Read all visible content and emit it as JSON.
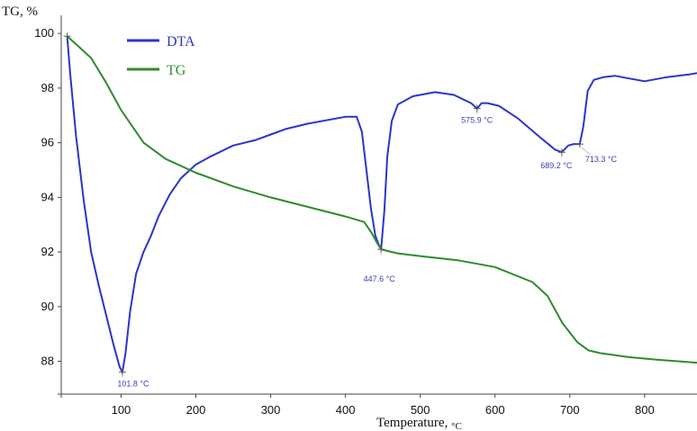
{
  "chart_data": {
    "type": "line",
    "ylabel": "TG, %",
    "xlabel": "Temperature,",
    "xlabel_unit": "°C",
    "xlim": [
      20,
      870
    ],
    "ylim": [
      86.8,
      100.4
    ],
    "grid": false,
    "legend_position": "top-left",
    "x_ticks": [
      100,
      200,
      300,
      400,
      500,
      600,
      700,
      800
    ],
    "y_ticks": [
      88,
      90,
      92,
      94,
      96,
      98,
      100
    ],
    "series": [
      {
        "name": "DTA",
        "color": "#2b35c8",
        "x": [
          28,
          32,
          40,
          50,
          60,
          70,
          80,
          90,
          98,
          101.8,
          106,
          112,
          120,
          130,
          140,
          150,
          165,
          180,
          200,
          220,
          250,
          280,
          300,
          320,
          350,
          380,
          400,
          415,
          422,
          428,
          434,
          440,
          444,
          447.6,
          452,
          456,
          462,
          470,
          490,
          520,
          545,
          560,
          568,
          575.9,
          582,
          590,
          605,
          630,
          660,
          680,
          689.2,
          698,
          705,
          713.3,
          718,
          724,
          732,
          745,
          760,
          780,
          800,
          830,
          860,
          870
        ],
        "y": [
          99.9,
          98.5,
          96.2,
          93.9,
          92.0,
          90.8,
          89.7,
          88.6,
          87.8,
          87.6,
          88.3,
          89.8,
          91.2,
          92.0,
          92.6,
          93.3,
          94.1,
          94.7,
          95.2,
          95.5,
          95.9,
          96.1,
          96.3,
          96.5,
          96.7,
          96.85,
          96.95,
          96.95,
          96.4,
          95.0,
          93.6,
          92.6,
          92.3,
          92.1,
          93.5,
          95.5,
          96.8,
          97.4,
          97.7,
          97.85,
          97.75,
          97.55,
          97.45,
          97.25,
          97.45,
          97.45,
          97.35,
          96.9,
          96.2,
          95.75,
          95.65,
          95.9,
          95.95,
          95.95,
          96.6,
          97.9,
          98.3,
          98.4,
          98.45,
          98.35,
          98.25,
          98.4,
          98.5,
          98.55
        ]
      },
      {
        "name": "TG",
        "color": "#2e8b2e",
        "x": [
          28,
          40,
          60,
          80,
          100,
          130,
          160,
          200,
          250,
          300,
          350,
          400,
          425,
          435,
          442,
          447.6,
          455,
          470,
          500,
          550,
          600,
          650,
          670,
          690,
          710,
          725,
          740,
          780,
          820,
          870
        ],
        "y": [
          99.9,
          99.6,
          99.1,
          98.2,
          97.2,
          96.0,
          95.4,
          94.9,
          94.4,
          94.0,
          93.65,
          93.3,
          93.1,
          92.7,
          92.35,
          92.1,
          92.05,
          91.95,
          91.85,
          91.7,
          91.45,
          90.9,
          90.4,
          89.4,
          88.7,
          88.4,
          88.3,
          88.15,
          88.05,
          87.95
        ]
      }
    ],
    "annotations": [
      {
        "series": "DTA",
        "x": 101.8,
        "y": 87.6,
        "text": "101.8 °C",
        "anchor": "below"
      },
      {
        "series": "DTA",
        "x": 447.6,
        "y": 92.1,
        "text": "447.6 °C",
        "anchor": "below"
      },
      {
        "series": "DTA",
        "x": 575.9,
        "y": 97.25,
        "text": "575.9 °C",
        "anchor": "below"
      },
      {
        "series": "DTA",
        "x": 689.2,
        "y": 95.65,
        "text": "689.2 °C",
        "anchor": "below"
      },
      {
        "series": "DTA",
        "x": 713.3,
        "y": 95.95,
        "text": "713.3 °C",
        "anchor": "below-right"
      }
    ]
  }
}
